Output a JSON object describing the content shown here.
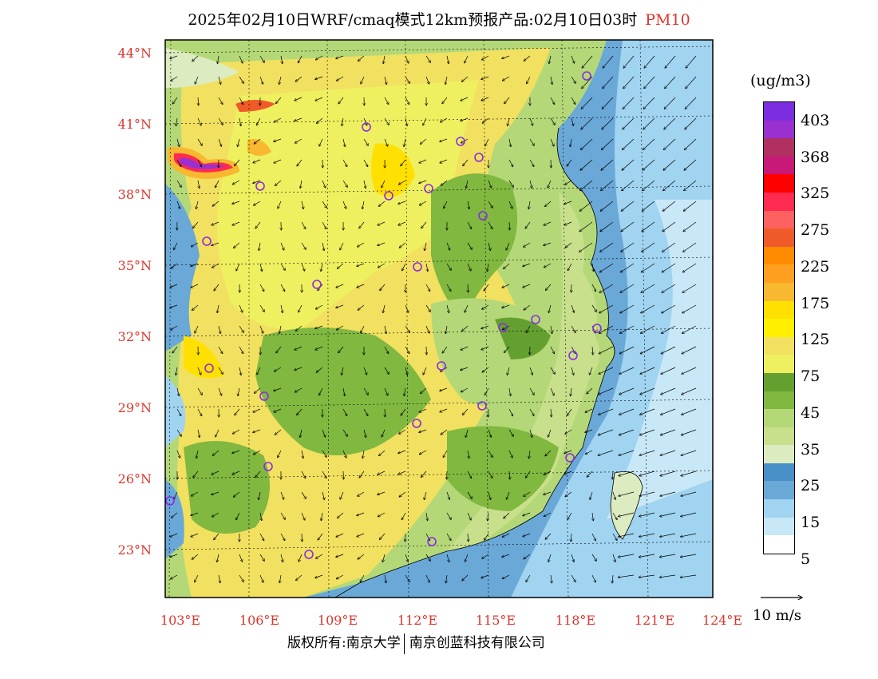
{
  "title": {
    "main": "2025年02月10日WRF/cmaq模式12km预报产品:02月10日03时",
    "variable": "PM10"
  },
  "axes": {
    "lat_labels": [
      "44°N",
      "41°N",
      "38°N",
      "35°N",
      "32°N",
      "29°N",
      "26°N",
      "23°N"
    ],
    "lon_labels": [
      "103°E",
      "106°E",
      "109°E",
      "112°E",
      "115°E",
      "118°E",
      "121°E",
      "124°E"
    ]
  },
  "legend": {
    "unit": "(ug/m3)",
    "labels": [
      "403",
      "368",
      "325",
      "275",
      "225",
      "175",
      "125",
      "75",
      "45",
      "35",
      "25",
      "15",
      "5"
    ],
    "colors": [
      "#7b2ee0",
      "#9b30d0",
      "#b03060",
      "#c81878",
      "#ff0000",
      "#ff2a50",
      "#ff6060",
      "#f05a28",
      "#ff8c00",
      "#ffa020",
      "#f8b830",
      "#ffe000",
      "#fff000",
      "#f2e060",
      "#eef060",
      "#64a030",
      "#80b840",
      "#b4d878",
      "#c8e08c",
      "#dcecc0",
      "#4a90c8",
      "#6aa8d8",
      "#a0d4f0",
      "#c8e8f8",
      "#ffffff"
    ],
    "accent": "#e0342c"
  },
  "wind_reference": {
    "label": "10 m/s"
  },
  "credits": {
    "left": "版权所有:南京大学",
    "right": "南京创蓝科技有限公司"
  }
}
